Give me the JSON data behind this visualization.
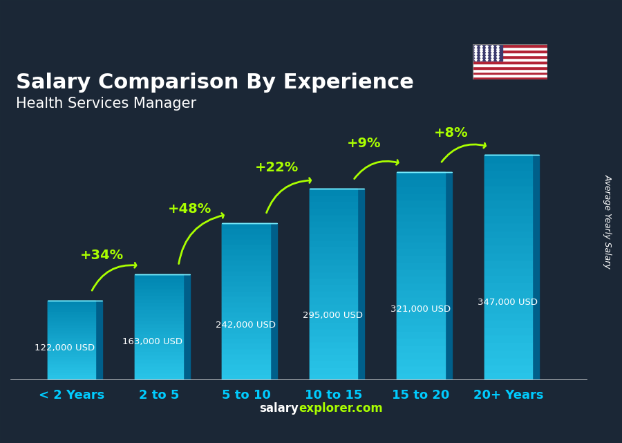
{
  "title": "Salary Comparison By Experience",
  "subtitle": "Health Services Manager",
  "categories": [
    "< 2 Years",
    "2 to 5",
    "5 to 10",
    "10 to 15",
    "15 to 20",
    "20+ Years"
  ],
  "values": [
    122000,
    163000,
    242000,
    295000,
    321000,
    347000
  ],
  "value_labels": [
    "122,000 USD",
    "163,000 USD",
    "242,000 USD",
    "295,000 USD",
    "321,000 USD",
    "347,000 USD"
  ],
  "pct_changes": [
    "+34%",
    "+48%",
    "+22%",
    "+9%",
    "+8%"
  ],
  "bar_color_top": "#00d4ff",
  "bar_color_mid": "#00aadd",
  "bar_color_side": "#007baa",
  "background_color": "#2a3a4a",
  "title_color": "#ffffff",
  "subtitle_color": "#ffffff",
  "label_color": "#ffffff",
  "pct_color": "#aaff00",
  "category_color": "#00ccff",
  "watermark": "salaryexplorer.com",
  "ylabel": "Average Yearly Salary",
  "bar_width": 0.55,
  "ylim": [
    0,
    420000
  ]
}
